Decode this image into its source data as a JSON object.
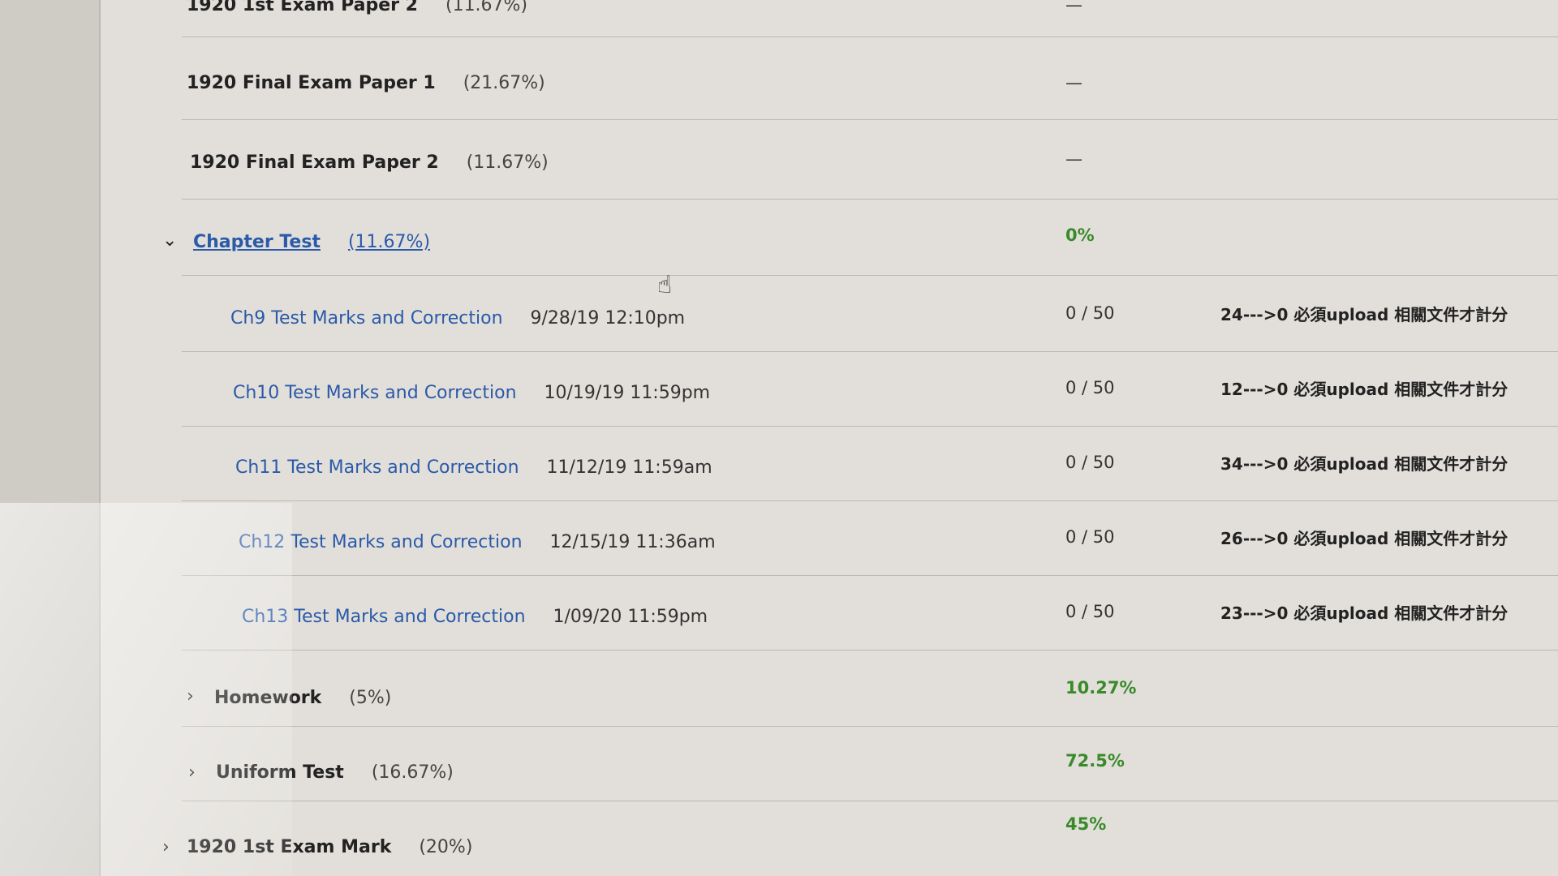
{
  "rows": [
    {
      "name": "1920 1st Exam Paper 2",
      "weight": "(11.67%)",
      "score": "—"
    },
    {
      "name": "1920 Final Exam Paper 1",
      "weight": "(21.67%)",
      "score": "—"
    },
    {
      "name": "1920 Final Exam Paper 2",
      "weight": "(11.67%)",
      "score": "—"
    }
  ],
  "chapter_test": {
    "name": "Chapter Test",
    "weight": "(11.67%)",
    "score": "0%",
    "expanded": true,
    "items": [
      {
        "name": "Ch9 Test Marks and Correction",
        "due": "9/28/19 12:10pm",
        "score": "0 / 50",
        "comment": "24--->0 必須upload 相關文件才計分"
      },
      {
        "name": "Ch10 Test Marks and Correction",
        "due": "10/19/19 11:59pm",
        "score": "0 / 50",
        "comment": "12--->0 必須upload 相關文件才計分"
      },
      {
        "name": "Ch11 Test Marks and Correction",
        "due": "11/12/19 11:59am",
        "score": "0 / 50",
        "comment": "34--->0 必須upload 相關文件才計分"
      },
      {
        "name": "Ch12 Test Marks and Correction",
        "due": "12/15/19 11:36am",
        "score": "0 / 50",
        "comment": "26--->0 必須upload 相關文件才計分"
      },
      {
        "name": "Ch13 Test Marks and Correction",
        "due": "1/09/20 11:59pm",
        "score": "0 / 50",
        "comment": "23--->0 必須upload 相關文件才計分"
      }
    ]
  },
  "categories": [
    {
      "name": "Homework",
      "weight": "(5%)",
      "score": "10.27%"
    },
    {
      "name": "Uniform Test",
      "weight": "(16.67%)",
      "score": "72.5%"
    },
    {
      "name": "1920 1st Exam Mark",
      "weight": "(20%)",
      "score": "45%"
    }
  ],
  "colors": {
    "link": "#2a5aa8",
    "percent": "#3a8a2a"
  }
}
